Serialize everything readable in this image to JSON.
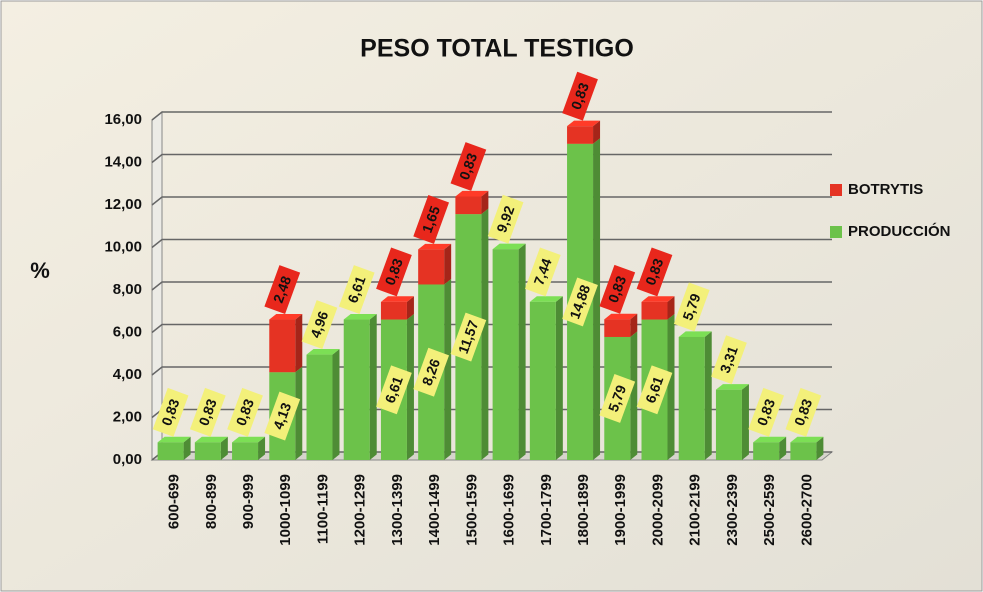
{
  "chart_data": {
    "type": "bar",
    "stacked": true,
    "title": "PESO TOTAL TESTIGO",
    "y_label": "%",
    "categories": [
      "600-699",
      "800-899",
      "900-999",
      "1000-1099",
      "1100-1199",
      "1200-1299",
      "1300-1399",
      "1400-1499",
      "1500-1599",
      "1600-1699",
      "1700-1799",
      "1800-1899",
      "1900-1999",
      "2000-2099",
      "2100-2199",
      "2300-2399",
      "2500-2599",
      "2600-2700"
    ],
    "series": [
      {
        "name": "PRODUCCIÓN",
        "color": "#6cc24a",
        "values": [
          0.83,
          0.83,
          0.83,
          4.13,
          4.96,
          6.61,
          6.61,
          8.26,
          11.57,
          9.92,
          7.44,
          14.88,
          5.79,
          6.61,
          5.79,
          3.31,
          0.83,
          0.83
        ],
        "value_labels": [
          "0,83",
          "0,83",
          "0,83",
          "4,13",
          "4,96",
          "6,61",
          "6,61",
          "8,26",
          "11,57",
          "9,92",
          "7,44",
          "14,88",
          "5,79",
          "6,61",
          "5,79",
          "3,31",
          "0,83",
          "0,83"
        ]
      },
      {
        "name": "BOTRYTIS",
        "color": "#e53323",
        "values": [
          null,
          null,
          null,
          2.48,
          null,
          null,
          0.83,
          1.65,
          0.83,
          null,
          null,
          0.83,
          0.83,
          0.83,
          null,
          null,
          null,
          null
        ],
        "value_labels": [
          null,
          null,
          null,
          "2,48",
          null,
          null,
          "0,83",
          "1,65",
          "0,83",
          null,
          null,
          "0,83",
          "0,83",
          "0,83",
          null,
          null,
          null,
          null
        ]
      }
    ],
    "ylim": [
      0,
      16
    ],
    "yticks": [
      {
        "value": 0,
        "label": "0,00"
      },
      {
        "value": 2,
        "label": "2,00"
      },
      {
        "value": 4,
        "label": "4,00"
      },
      {
        "value": 6,
        "label": "6,00"
      },
      {
        "value": 8,
        "label": "8,00"
      },
      {
        "value": 10,
        "label": "10,00"
      },
      {
        "value": 12,
        "label": "12,00"
      },
      {
        "value": 14,
        "label": "14,00"
      },
      {
        "value": 16,
        "label": "16,00"
      }
    ],
    "grid": true,
    "legend": "right"
  }
}
